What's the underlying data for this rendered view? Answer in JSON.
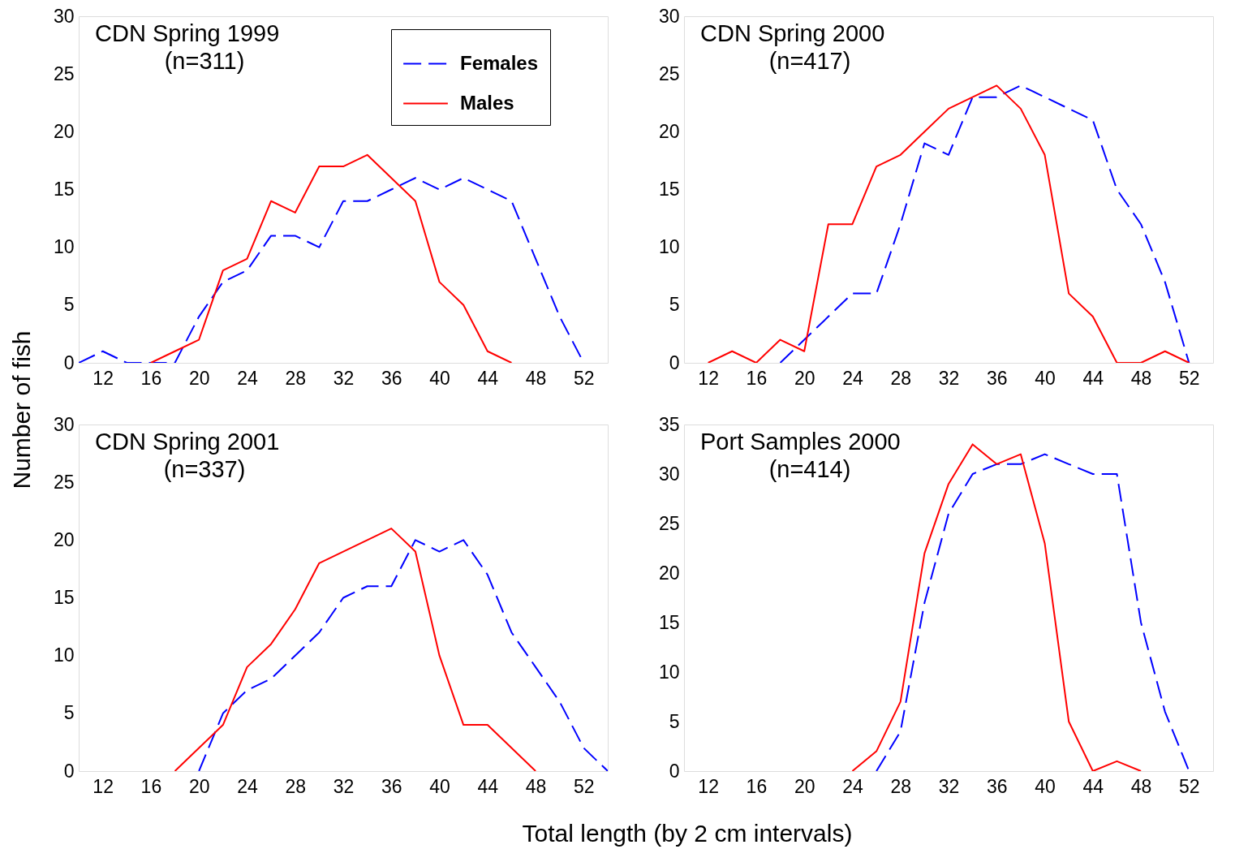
{
  "chart_data": [
    {
      "type": "line",
      "title": "CDN Spring 1999",
      "annotations": [
        "(n=311)"
      ],
      "ylabel": "Number of fish",
      "xlabel": "Total length (by 2 cm intervals)",
      "xlim": [
        10,
        54
      ],
      "xticks": [
        12,
        16,
        20,
        24,
        28,
        32,
        36,
        40,
        44,
        48,
        52
      ],
      "ylim": [
        0,
        30
      ],
      "yticks": [
        0,
        5,
        10,
        15,
        20,
        25,
        30
      ],
      "grid": false,
      "legend": "top right",
      "marker": "none",
      "series": [
        {
          "name": "Females",
          "color": "#0000ff",
          "line_style": "dashed",
          "x": [
            10,
            12,
            14,
            16,
            18,
            20,
            22,
            24,
            26,
            28,
            30,
            32,
            34,
            36,
            38,
            40,
            42,
            44,
            46,
            48,
            50,
            52
          ],
          "values": [
            0,
            1,
            0,
            0,
            0,
            4,
            7,
            8,
            11,
            11,
            10,
            14,
            14,
            15,
            16,
            15,
            16,
            15,
            14,
            9,
            4,
            0
          ]
        },
        {
          "name": "Males",
          "color": "#ff0000",
          "line_style": "solid",
          "x": [
            16,
            18,
            20,
            22,
            24,
            26,
            28,
            30,
            32,
            34,
            36,
            38,
            40,
            42,
            44,
            46
          ],
          "values": [
            0,
            1,
            2,
            8,
            9,
            14,
            13,
            17,
            17,
            18,
            16,
            14,
            7,
            5,
            1,
            0
          ]
        }
      ]
    },
    {
      "type": "line",
      "title": "CDN Spring 2000",
      "annotations": [
        "(n=417)"
      ],
      "xlim": [
        10,
        54
      ],
      "xticks": [
        12,
        16,
        20,
        24,
        28,
        32,
        36,
        40,
        44,
        48,
        52
      ],
      "ylim": [
        0,
        30
      ],
      "yticks": [
        0,
        5,
        10,
        15,
        20,
        25,
        30
      ],
      "grid": false,
      "marker": "none",
      "series": [
        {
          "color": "#0000ff",
          "line_style": "dashed",
          "x": [
            18,
            20,
            22,
            24,
            26,
            28,
            30,
            32,
            34,
            36,
            38,
            40,
            42,
            44,
            46,
            48,
            50,
            52
          ],
          "values": [
            0,
            2,
            4,
            6,
            6,
            12,
            19,
            18,
            23,
            23,
            24,
            23,
            22,
            21,
            15,
            12,
            7,
            0
          ]
        },
        {
          "color": "#ff0000",
          "line_style": "solid",
          "x": [
            12,
            14,
            16,
            18,
            20,
            22,
            24,
            26,
            28,
            30,
            32,
            34,
            36,
            38,
            40,
            42,
            44,
            46,
            48,
            50,
            52
          ],
          "values": [
            0,
            1,
            0,
            2,
            1,
            12,
            12,
            17,
            18,
            20,
            22,
            23,
            24,
            22,
            18,
            6,
            4,
            0,
            0,
            1,
            0
          ]
        }
      ]
    },
    {
      "type": "line",
      "title": "CDN Spring 2001",
      "annotations": [
        "(n=337)"
      ],
      "xlim": [
        10,
        54
      ],
      "xticks": [
        12,
        16,
        20,
        24,
        28,
        32,
        36,
        40,
        44,
        48,
        52
      ],
      "ylim": [
        0,
        30
      ],
      "yticks": [
        0,
        5,
        10,
        15,
        20,
        25,
        30
      ],
      "grid": false,
      "marker": "none",
      "series": [
        {
          "color": "#0000ff",
          "line_style": "dashed",
          "x": [
            20,
            22,
            24,
            26,
            28,
            30,
            32,
            34,
            36,
            38,
            40,
            42,
            44,
            46,
            48,
            50,
            52,
            54
          ],
          "values": [
            0,
            5,
            7,
            8,
            10,
            12,
            15,
            16,
            16,
            20,
            19,
            20,
            17,
            12,
            9,
            6,
            2,
            0
          ]
        },
        {
          "color": "#ff0000",
          "line_style": "solid",
          "x": [
            18,
            20,
            22,
            24,
            26,
            28,
            30,
            32,
            34,
            36,
            38,
            40,
            42,
            44,
            46,
            48
          ],
          "values": [
            0,
            2,
            4,
            9,
            11,
            14,
            18,
            19,
            20,
            21,
            19,
            10,
            4,
            4,
            2,
            0
          ]
        }
      ]
    },
    {
      "type": "line",
      "title": "Port Samples 2000",
      "annotations": [
        "(n=414)"
      ],
      "xlim": [
        10,
        54
      ],
      "xticks": [
        12,
        16,
        20,
        24,
        28,
        32,
        36,
        40,
        44,
        48,
        52
      ],
      "ylim": [
        0,
        35
      ],
      "yticks": [
        0,
        5,
        10,
        15,
        20,
        25,
        30,
        35
      ],
      "grid": false,
      "marker": "none",
      "series": [
        {
          "color": "#0000ff",
          "line_style": "dashed",
          "x": [
            26,
            28,
            30,
            32,
            34,
            36,
            38,
            40,
            42,
            44,
            46,
            48,
            50,
            52
          ],
          "values": [
            0,
            4,
            17,
            26,
            30,
            31,
            31,
            32,
            31,
            30,
            30,
            15,
            6,
            0
          ]
        },
        {
          "color": "#ff0000",
          "line_style": "solid",
          "x": [
            24,
            26,
            28,
            30,
            32,
            34,
            36,
            38,
            40,
            42,
            44,
            46,
            48
          ],
          "values": [
            0,
            2,
            7,
            22,
            29,
            33,
            31,
            32,
            23,
            5,
            0,
            1,
            0
          ]
        }
      ]
    }
  ]
}
